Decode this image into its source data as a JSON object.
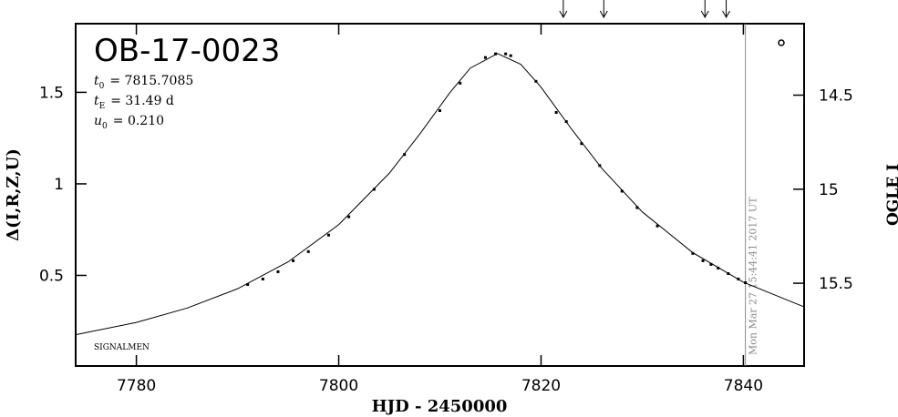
{
  "chart_data": {
    "type": "scatter",
    "title": "OB-17-0023",
    "parameters": [
      {
        "symbol": "t",
        "sub": "0",
        "text": "= 7815.7085"
      },
      {
        "symbol": "t",
        "sub": "E",
        "text": "= 31.49 d"
      },
      {
        "symbol": "u",
        "sub": "0",
        "text": "= 0.210"
      }
    ],
    "xlabel": "HJD - 2450000",
    "ylabel": "Δ(I,R,Z,U)",
    "y2label": "OGLE I",
    "footer": "SIGNALMEN",
    "timestamp": "Mon Mar 27 15:44:41 2017 UT",
    "timestamp_x": 7840.2,
    "markers_x": [
      7822.2,
      7826.2,
      7836.2,
      7838.3
    ],
    "xlim": [
      7774,
      7846
    ],
    "xticks": [
      7780,
      7800,
      7820,
      7840
    ],
    "ylim": [
      0.005,
      1.875
    ],
    "yticks": [
      0.5,
      1,
      1.5
    ],
    "y2lim": [
      15.94,
      14.12
    ],
    "y2ticks": [
      14.5,
      15,
      15.5
    ],
    "points": {
      "color": "#000",
      "x": [
        7791,
        7792.5,
        7794,
        7795.5,
        7797,
        7799,
        7801,
        7803.5,
        7806.5,
        7810,
        7812,
        7814.5,
        7815.5,
        7816.5,
        7817,
        7819.5,
        7821.5,
        7822.5,
        7824,
        7825.8,
        7828,
        7829.5,
        7831.5,
        7835,
        7836,
        7836.8,
        7837.5,
        7838.5,
        7839.5,
        7840.2
      ],
      "values": [
        0.45,
        0.48,
        0.52,
        0.58,
        0.63,
        0.72,
        0.82,
        0.97,
        1.16,
        1.4,
        1.55,
        1.69,
        1.71,
        1.71,
        1.7,
        1.56,
        1.39,
        1.34,
        1.22,
        1.1,
        0.96,
        0.87,
        0.77,
        0.62,
        0.58,
        0.56,
        0.54,
        0.51,
        0.48,
        0.46
      ]
    },
    "model": {
      "color": "#000",
      "x": [
        7774,
        7780,
        7785,
        7790,
        7795,
        7800,
        7805,
        7808,
        7811,
        7813,
        7815.7,
        7818,
        7820,
        7823,
        7826,
        7830,
        7835,
        7840,
        7846
      ],
      "values": [
        0.176,
        0.243,
        0.321,
        0.427,
        0.574,
        0.777,
        1.058,
        1.271,
        1.499,
        1.632,
        1.712,
        1.653,
        1.528,
        1.3,
        1.085,
        0.847,
        0.624,
        0.463,
        0.328
      ]
    }
  }
}
